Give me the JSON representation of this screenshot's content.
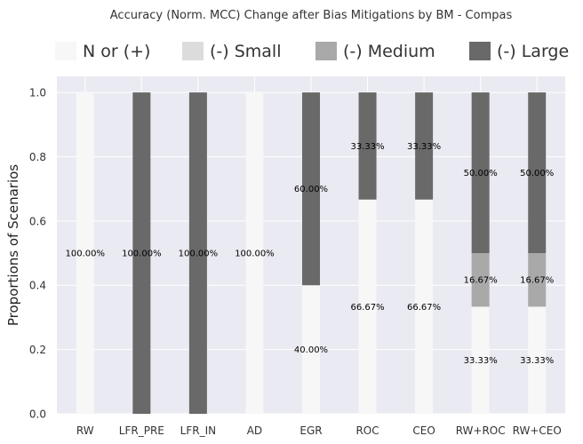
{
  "chart_data": {
    "type": "bar",
    "stacked": true,
    "title": "Accuracy (Norm. MCC) Change after Bias Mitigations by BM - Compas",
    "xlabel": "",
    "ylabel": "Proportions of Scenarios",
    "ylim": [
      0,
      1.05
    ],
    "yticks": [
      "0.0",
      "0.2",
      "0.4",
      "0.6",
      "0.8",
      "1.0"
    ],
    "grid": true,
    "legend_position": "top",
    "categories": [
      "RW",
      "LFR_PRE",
      "LFR_IN",
      "AD",
      "EGR",
      "ROC",
      "CEO",
      "RW+ROC",
      "RW+CEO"
    ],
    "series": [
      {
        "name": "N or (+)",
        "color": "#f7f7f7",
        "values": [
          1.0,
          0.0,
          0.0,
          1.0,
          0.4,
          0.6667,
          0.6667,
          0.3333,
          0.3333
        ],
        "labels": [
          "100.00%",
          "",
          "",
          "100.00%",
          "40.00%",
          "66.67%",
          "66.67%",
          "33.33%",
          "33.33%"
        ]
      },
      {
        "name": "(-) Small",
        "color": "#dcdcdc",
        "values": [
          0,
          0,
          0,
          0,
          0,
          0,
          0,
          0,
          0
        ],
        "labels": [
          "",
          "",
          "",
          "",
          "",
          "",
          "",
          "",
          ""
        ]
      },
      {
        "name": "(-) Medium",
        "color": "#a9a9a9",
        "values": [
          0,
          0,
          0,
          0,
          0,
          0,
          0,
          0.1667,
          0.1667
        ],
        "labels": [
          "",
          "",
          "",
          "",
          "",
          "",
          "",
          "16.67%",
          "16.67%"
        ]
      },
      {
        "name": "(-) Large",
        "color": "#696969",
        "values": [
          0.0,
          1.0,
          1.0,
          0.0,
          0.6,
          0.3333,
          0.3333,
          0.5,
          0.5
        ],
        "labels": [
          "",
          "100.00%",
          "100.00%",
          "",
          "60.00%",
          "33.33%",
          "33.33%",
          "50.00%",
          "50.00%"
        ]
      }
    ]
  },
  "colors": {
    "plot_background": "#eaeaf2",
    "grid": "#ffffff",
    "text": "#333333"
  }
}
